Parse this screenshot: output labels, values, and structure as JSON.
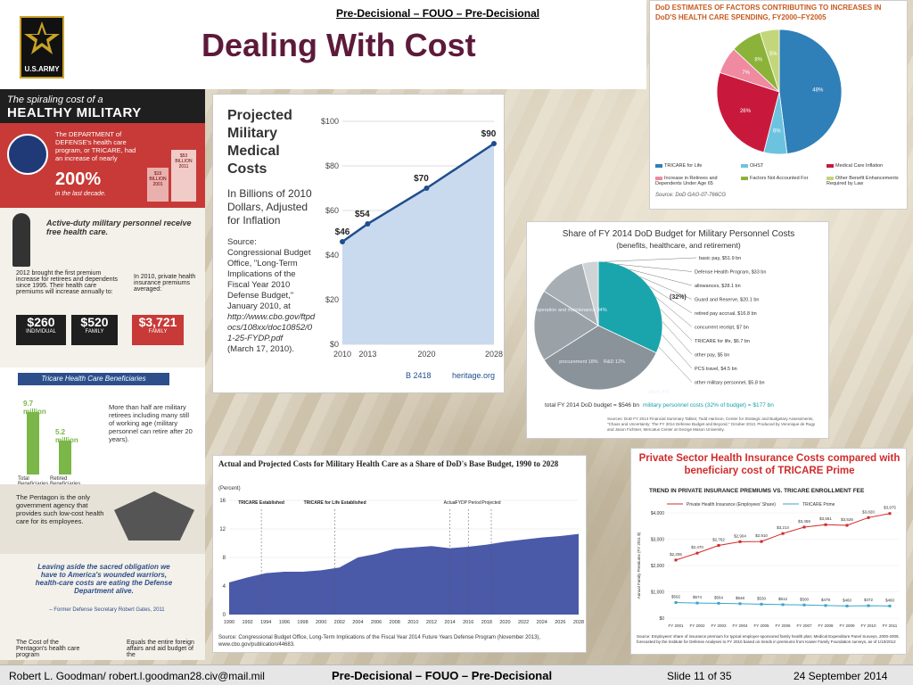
{
  "header": {
    "classification": "Pre-Decisional – FOUO – Pre-Decisional",
    "title": "Dealing With Cost",
    "logo_text": "U.S.ARMY"
  },
  "infographic": {
    "headline_1": "The spiraling cost of a",
    "headline_2": "HEALTHY MILITARY",
    "dept_text": "The DEPARTMENT of DEFENSE's health care program, or TRICARE, had an increase of nearly",
    "increase": "200%",
    "increase_note": "in the last decade.",
    "coin_1": "$19 BILLION 2001",
    "coin_2": "$53 BILLION 2011",
    "active_duty": "Active-duty military personnel receive free health care.",
    "fact_2012": "2012 brought the first premium increase for retirees and dependents since 1995. Their health care premiums will increase annually to:",
    "fact_private": "In 2010, private health insurance premiums averaged:",
    "prices": [
      {
        "value": "$260",
        "unit": "INDIVIDUAL"
      },
      {
        "value": "$520",
        "unit": "FAMILY"
      },
      {
        "value": "$3,721",
        "unit": "FAMILY"
      }
    ],
    "tricare_header": "Tricare Health Care Beneficiaries",
    "beneficiaries": [
      {
        "value": "9.7 million",
        "label": "Total Beneficiaries",
        "amount": 9.7
      },
      {
        "value": "5.2 million",
        "label": "Retired Beneficiaries",
        "amount": 5.2
      }
    ],
    "retirees_text": "More than half are military retirees including many still of working age (military personnel can retire after 20 years).",
    "pentagon_text": "The Pentagon is the only government agency that provides such low-cost health care for its employees.",
    "quote": "Leaving aside the sacred obligation we have to America's wounded warriors, health-care costs are eating the Defense Department alive.",
    "quote_author": "– Former Defense Secretary Robert Gates, 2011",
    "cost_text": "The Cost of the Pentagon's health care program",
    "equals_text": "Equals the entire foreign affairs and aid budget of the"
  },
  "projected": {
    "title": "Projected Military Medical Costs",
    "subtitle": "In Billions of 2010 Dollars, Adjusted for Inflation",
    "source_label": "Source:",
    "source_text": "Congressional Budget Office, \"Long-Term Implications of the Fiscal Year 2010 Defense Budget,\" January 2010, at",
    "source_url": "http://www.cbo.gov/ftpdocs/108xx/doc10852/01-25-FYDP.pdf",
    "source_date": "(March 17, 2010).",
    "footer_code": "B 2418",
    "footer_org": "heritage.org",
    "chart_data": {
      "type": "area",
      "x": [
        "2010",
        "2013",
        "2020",
        "2028"
      ],
      "values": [
        46,
        54,
        70,
        90
      ],
      "labels": [
        "$46",
        "$54",
        "$70",
        "$90"
      ],
      "yticks": [
        "$0",
        "$20",
        "$40",
        "$60",
        "$80",
        "$100"
      ],
      "ylim": [
        0,
        100
      ],
      "colors": {
        "line": "#1f4e8c",
        "fill": "#c9d9ee"
      }
    }
  },
  "dod_pie": {
    "title": "DoD ESTIMATES OF FACTORS CONTRIBUTING TO INCREASES IN DoD'S HEALTH CARE SPENDING, FY2000–FY2005",
    "chart_data": {
      "type": "pie",
      "slices": [
        {
          "name": "TRICARE for Life",
          "value": 48,
          "label": "48%",
          "color": "#2f7fb8"
        },
        {
          "name": "OHST",
          "value": 6,
          "label": "6%",
          "color": "#6cc3e0"
        },
        {
          "name": "Medical Care Inflation",
          "value": 26,
          "label": "26%",
          "color": "#c8193c"
        },
        {
          "name": "Increase in Retirees and Dependents Under Age 65",
          "value": 7,
          "label": "7%",
          "color": "#f08aa0"
        },
        {
          "name": "Factors Not Accounted For",
          "value": 8,
          "label": "8%",
          "color": "#8bb33a"
        },
        {
          "name": "Other Benefit Enhancements Required by Law",
          "value": 5,
          "label": "5%",
          "color": "#c3d67a"
        }
      ]
    },
    "source": "Source: DoD GAO-07-766CG"
  },
  "fy2014": {
    "title": "Share of FY 2014 DoD Budget for Military Personnel Costs",
    "subtitle": "(benefits, healthcare, and retirement)",
    "chart_data": {
      "type": "pie",
      "slices": [
        {
          "name": "personnel",
          "value": 32,
          "color": "#1aa5ad"
        },
        {
          "name": "operation and maintenance 34%",
          "value": 34,
          "color": "#8a9399"
        },
        {
          "name": "procurement 18%",
          "value": 18,
          "color": "#9aa2a7"
        },
        {
          "name": "R&D 12%",
          "value": 12,
          "color": "#a8afb4"
        },
        {
          "name": "other, 4%",
          "value": 4,
          "color": "#cfd3d6"
        }
      ],
      "callouts": [
        "basic pay, $51.9 bn",
        "Defense Health Program, $33 bn",
        "allowances, $28.1 bn",
        "Guard and Reserve, $20.1 bn",
        "retired pay accrual, $16.8 bn",
        "concurrent receipt, $7 bn",
        "TRICARE for life, $6.7 bn",
        "other pay, $5 bn",
        "PCS travel, $4.5 bn",
        "other military personnel, $5.8 bn"
      ],
      "center_labels": [
        "operation and maintenance 34%",
        "procurement 18%",
        "R&D 12%",
        "other, 4%"
      ],
      "personnel_share": "(32%)"
    },
    "total": "total FY 2014 DoD budget = $546 bn",
    "personnel_total": "military personnel costs (32% of budget) = $177 bn",
    "source": "Sources: DoD FY 2014 Financial Summary Tables; Todd Harrison, Center for Strategic and Budgetary Assessments, \"Chaos and Uncertainty: The FY 2014 Defense Budget and Beyond,\" October 2013. Produced by Veronique de Rugy and Jason Fichtner, Mercatus Center at George Mason University."
  },
  "area_chart": {
    "title": "Actual and Projected Costs for Military Health Care as a Share of DoD's Base Budget, 1990 to 2028",
    "unit": "(Percent)",
    "source": "Source: Congressional Budget Office, Long-Term Implications of the Fiscal Year 2014 Future Years Defense Program (November 2013), www.cbo.gov/publication/44683.",
    "chart_data": {
      "type": "area",
      "x": [
        1990,
        1992,
        1994,
        1996,
        1998,
        2000,
        2002,
        2004,
        2006,
        2008,
        2010,
        2012,
        2014,
        2016,
        2018,
        2020,
        2022,
        2024,
        2026,
        2028
      ],
      "values": [
        4.5,
        5.2,
        5.8,
        6.0,
        6.0,
        6.2,
        6.6,
        8.0,
        8.5,
        9.2,
        9.4,
        9.6,
        9.3,
        9.5,
        9.8,
        10.2,
        10.5,
        10.8,
        11.0,
        11.3
      ],
      "xticks": [
        "1990",
        "1992",
        "1994",
        "1996",
        "1998",
        "2000",
        "2002",
        "2004",
        "2006",
        "2008",
        "2010",
        "2012",
        "2014",
        "2016",
        "2018",
        "2020",
        "2022",
        "2024",
        "2026",
        "2028"
      ],
      "yticks": [
        "0",
        "4",
        "8",
        "12",
        "16"
      ],
      "ylim": [
        0,
        16
      ],
      "annotations": [
        {
          "text": "TRICARE Established",
          "x": 1993.5
        },
        {
          "text": "TRICARE for Life Established",
          "x": 2001.5
        },
        {
          "text": "Actual",
          "x": 2014
        },
        {
          "text": "FYDP Period",
          "x": 2016
        },
        {
          "text": "Projected",
          "x": 2018.5
        }
      ],
      "color": "#4a5aa8"
    }
  },
  "private_sector": {
    "title": "Private Sector Health Insurance Costs compared with beneficiary cost of TRICARE Prime",
    "subtitle": "TREND IN PRIVATE INSURANCE PREMIUMS VS. TRICARE ENROLLMENT FEE",
    "legend_private": "Private Health Insurance (Employees' Share)",
    "legend_tricare": "TRICARE Prime",
    "ylabel": "Annual Family Premiums (FY 2011 $)",
    "chart_data": {
      "type": "line",
      "categories": [
        "FY 2001",
        "FY 2002",
        "FY 2003",
        "FY 2004",
        "FY 2005",
        "FY 2006",
        "FY 2007",
        "FY 2008",
        "FY 2009",
        "FY 2010",
        "FY 2011"
      ],
      "series": [
        {
          "name": "Private Health Insurance (Employees' Share)",
          "values": [
            2206,
            2470,
            2762,
            2904,
            2910,
            3214,
            3459,
            3551,
            3526,
            3820,
            3975
          ],
          "labels": [
            "$2,206",
            "$2,470",
            "$2,762",
            "$2,904",
            "$2,910",
            "$3,214",
            "$3,459",
            "$3,551",
            "$3,526",
            "$3,820",
            "$3,975"
          ],
          "color": "#d12b2b"
        },
        {
          "name": "TRICARE Prime",
          "values": [
            592,
            574,
            564,
            548,
            530,
            512,
            500,
            479,
            460,
            472,
            460
          ],
          "labels": [
            "$592",
            "$574",
            "$564",
            "$548",
            "$530",
            "$512",
            "$500",
            "$479",
            "$460",
            "$472",
            "$460"
          ],
          "color": "#3aa6c8"
        }
      ],
      "yticks": [
        "$0",
        "$1,000",
        "$2,000",
        "$3,000",
        "$4,000"
      ],
      "ylim": [
        0,
        4000
      ]
    },
    "source": "Source: Employees' share of insurance premium for typical employer-sponsored family health plan; Medical Expenditure Panel Surveys, 2000-2009, forecasted by the Institute for Defense Analyses to FY 2010 based on trends in premiums from Kaiser Family Foundation surveys, as of 1/10/2012"
  },
  "footer": {
    "author": "Robert L. Goodman/ robert.l.goodman28.civ@mail.mil",
    "classification": "Pre-Decisional – FOUO – Pre-Decisional",
    "slide": "Slide 11 of 35",
    "date": "24 September 2014"
  }
}
